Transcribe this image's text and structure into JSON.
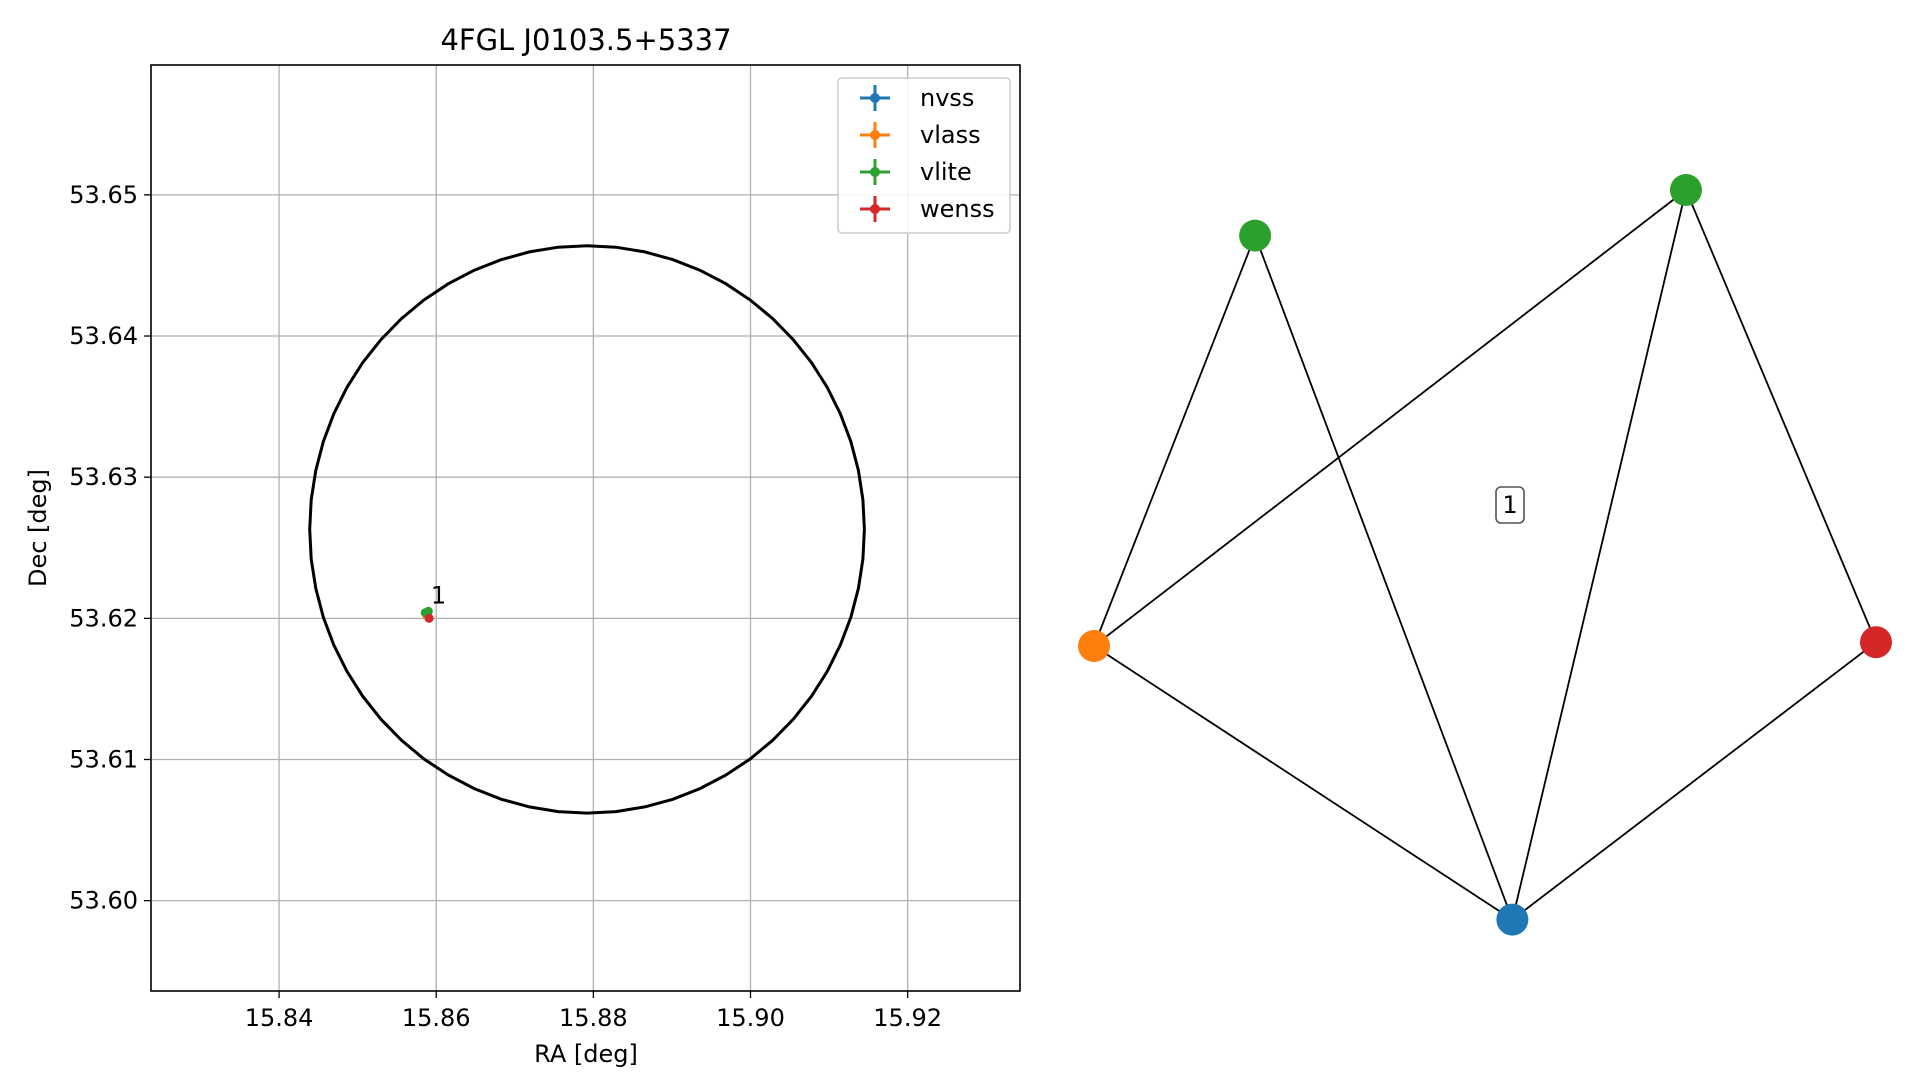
{
  "chart_data": [
    {
      "type": "scatter",
      "title": "4FGL J0103.5+5337",
      "xlabel": "RA [deg]",
      "ylabel": "Dec [deg]",
      "xlim": [
        15.8237,
        15.9343
      ],
      "ylim": [
        53.5936,
        53.6592
      ],
      "xticks": [
        15.84,
        15.86,
        15.88,
        15.9,
        15.92
      ],
      "yticks": [
        53.6,
        53.61,
        53.62,
        53.63,
        53.64,
        53.65
      ],
      "xtick_labels": [
        "15.84",
        "15.86",
        "15.88",
        "15.90",
        "15.92"
      ],
      "ytick_labels": [
        "53.60",
        "53.61",
        "53.62",
        "53.63",
        "53.64",
        "53.65"
      ],
      "grid": true,
      "legend_position": "top-right",
      "series": [
        {
          "name": "nvss",
          "color": "#1f77b4",
          "points": [
            {
              "x": 15.8589,
              "y": 53.6203
            }
          ]
        },
        {
          "name": "vlass",
          "color": "#ff7f0e",
          "points": [
            {
              "x": 15.8588,
              "y": 53.6202
            }
          ]
        },
        {
          "name": "vlite",
          "color": "#2ca02c",
          "points": [
            {
              "x": 15.8586,
              "y": 53.6204
            },
            {
              "x": 15.859,
              "y": 53.6205
            }
          ]
        },
        {
          "name": "wenss",
          "color": "#d62728",
          "points": [
            {
              "x": 15.8591,
              "y": 53.62
            }
          ]
        }
      ],
      "ellipse": {
        "center_x": 15.8792,
        "center_y": 53.6263,
        "semi_major_ra": 0.0353,
        "semi_minor_dec": 0.0201,
        "color": "#000000"
      },
      "annotations": [
        {
          "text": "1",
          "x": 15.8592,
          "y": 53.6209
        }
      ]
    },
    {
      "type": "network",
      "nodes": [
        {
          "id": "nvss",
          "color": "#1f77b4",
          "x": 0.535,
          "y": 0.04
        },
        {
          "id": "vlass",
          "color": "#ff7f0e",
          "x": 0.0,
          "y": 0.4
        },
        {
          "id": "vlite-a",
          "color": "#2ca02c",
          "x": 0.206,
          "y": 0.94
        },
        {
          "id": "vlite-b",
          "color": "#2ca02c",
          "x": 0.757,
          "y": 1.0
        },
        {
          "id": "wenss",
          "color": "#d62728",
          "x": 1.0,
          "y": 0.405
        }
      ],
      "edges": [
        [
          "vlass",
          "vlite-a"
        ],
        [
          "vlass",
          "vlite-b"
        ],
        [
          "vlass",
          "nvss"
        ],
        [
          "vlite-a",
          "nvss"
        ],
        [
          "vlite-b",
          "nvss"
        ],
        [
          "vlite-b",
          "wenss"
        ],
        [
          "wenss",
          "nvss"
        ]
      ],
      "label": "1"
    }
  ]
}
